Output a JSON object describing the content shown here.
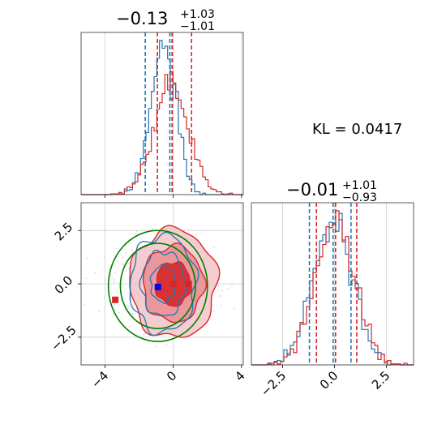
{
  "colors": {
    "blue": "#1f77b4",
    "red": "#d62728",
    "green": "#008000",
    "marker_blue": "#0000ff",
    "grid": "#cfcfcf"
  },
  "kl_label": "KL = 0.0417",
  "chart_data": [
    {
      "id": "marginal-x",
      "type": "histogram",
      "title": {
        "main": "−0.13",
        "sup": "+1.03",
        "sub": "−1.01"
      },
      "xlim": [
        -5.4,
        4.1
      ],
      "x_ticks": [
        -4,
        0,
        4
      ],
      "grid": true,
      "series": [
        {
          "name": "",
          "color": "blue",
          "quantile_lines": [
            -1.57,
            -0.13,
            0.0
          ]
        },
        {
          "name": "",
          "color": "red",
          "quantile_lines": [
            -1.0,
            -0.13,
            1.0
          ]
        }
      ]
    },
    {
      "id": "marginal-y",
      "type": "histogram",
      "title": {
        "main": "−0.01",
        "sup": "+1.01",
        "sub": "−0.93"
      },
      "xlim": [
        -4.0,
        3.8
      ],
      "x_ticks": [
        -2.5,
        0.0,
        2.5
      ],
      "x_tick_labels": [
        "−2.5",
        "0.0",
        "2.5"
      ],
      "grid": true,
      "series": [
        {
          "name": "",
          "color": "blue",
          "quantile_lines": [
            -1.15,
            -0.01,
            0.85
          ]
        },
        {
          "name": "",
          "color": "red",
          "quantile_lines": [
            -0.93,
            -0.01,
            1.01
          ]
        }
      ]
    },
    {
      "id": "joint",
      "type": "contour",
      "xlim": [
        -5.4,
        4.1
      ],
      "ylim": [
        -3.8,
        3.8
      ],
      "x_ticks": [
        -4,
        0,
        4
      ],
      "x_tick_labels": [
        "−4",
        "0",
        "4"
      ],
      "y_ticks": [
        -2.5,
        0.0,
        2.5
      ],
      "y_tick_labels": [
        "−2.5",
        "0.0",
        "2.5"
      ],
      "grid": true,
      "markers": [
        {
          "x": -3.4,
          "y": -0.75,
          "color": "red"
        },
        {
          "x": 0.0,
          "y": 0.0,
          "color": "red"
        },
        {
          "x": 0.9,
          "y": 0.0,
          "color": "red"
        },
        {
          "x": -0.9,
          "y": -0.15,
          "color": "marker_blue"
        }
      ]
    }
  ]
}
